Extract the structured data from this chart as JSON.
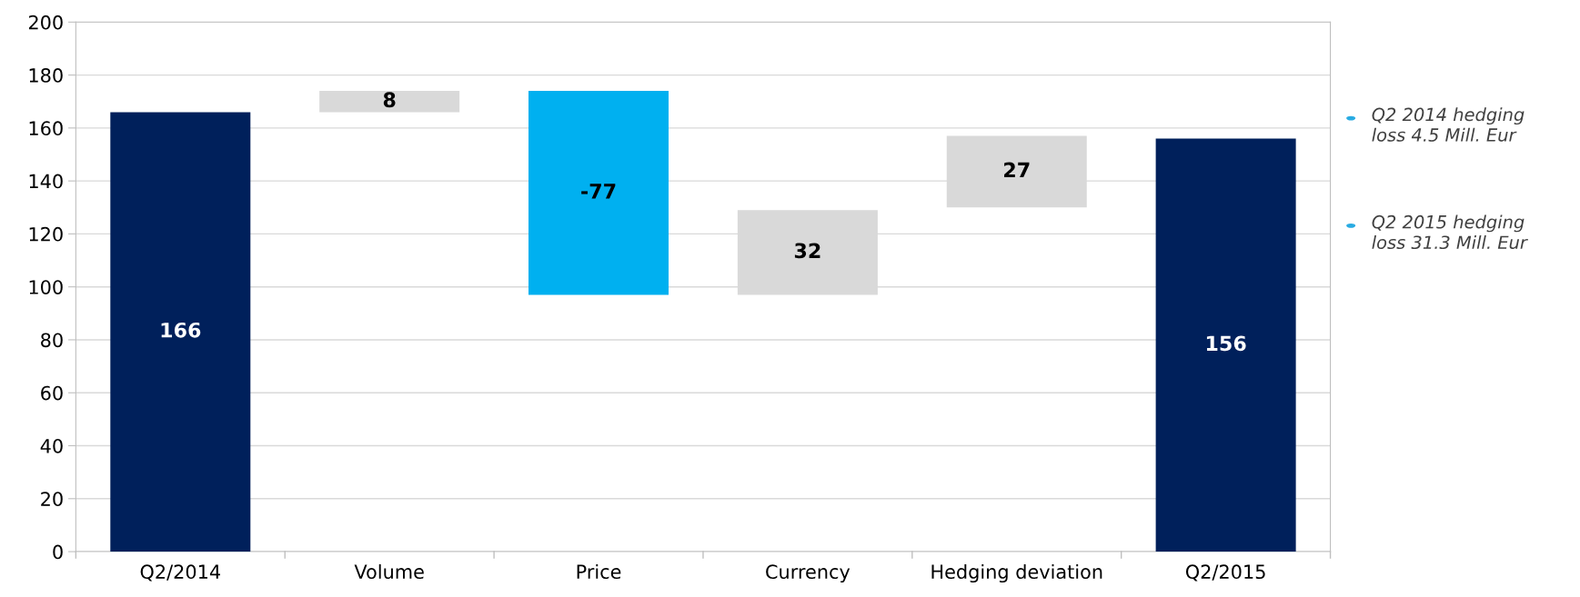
{
  "chart_data": {
    "type": "bar",
    "categories": [
      "Q2/2014",
      "Volume",
      "Price",
      "Currency",
      "Hedging deviation",
      "Q2/2015"
    ],
    "values": [
      166,
      8,
      -77,
      32,
      27,
      156
    ],
    "base": [
      0,
      166,
      174,
      97,
      130,
      0
    ],
    "colors": [
      "#00205b",
      "#d9d9d9",
      "#00b0f0",
      "#d9d9d9",
      "#d9d9d9",
      "#00205b"
    ],
    "data_labels": true,
    "ylim": [
      0,
      200
    ],
    "yticks": [
      0,
      20,
      40,
      60,
      80,
      100,
      120,
      140,
      160,
      180,
      200
    ],
    "grid": "y",
    "legend": false,
    "annotations": [
      "Q2 2014 hedging\nloss 4.5 Mill. Eur",
      "Q2 2015 hedging\nloss 31.3 Mill. Eur"
    ]
  }
}
